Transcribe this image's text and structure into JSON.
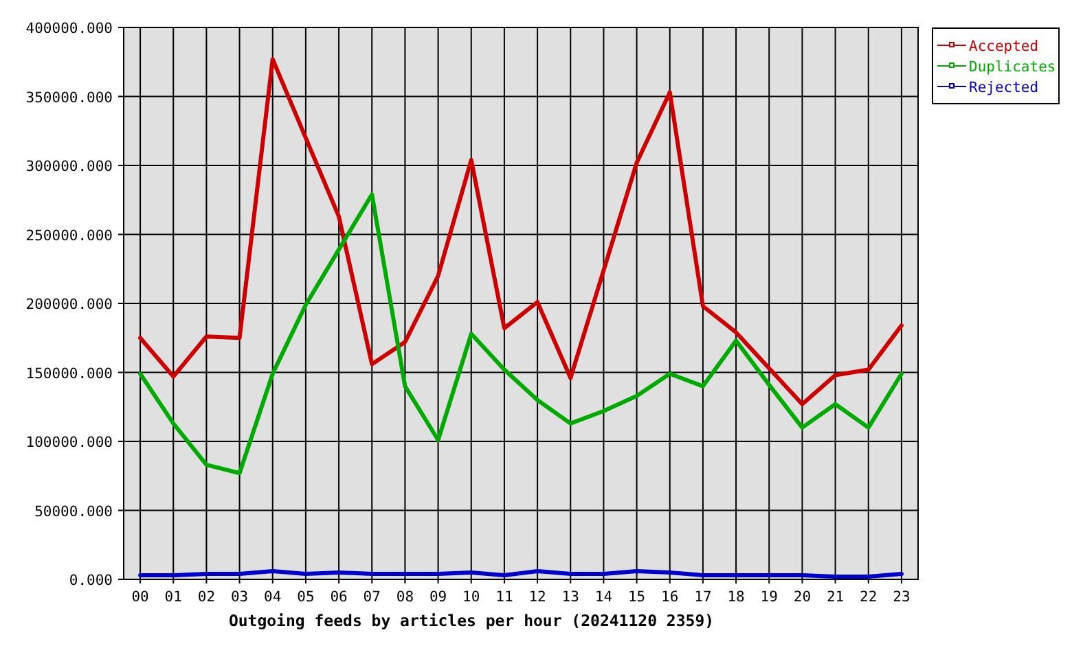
{
  "chart_data": {
    "type": "line",
    "xlabel": "Outgoing feeds by articles per hour (20241120 2359)",
    "categories": [
      "00",
      "01",
      "02",
      "03",
      "04",
      "05",
      "06",
      "07",
      "08",
      "09",
      "10",
      "11",
      "12",
      "13",
      "14",
      "15",
      "16",
      "17",
      "18",
      "19",
      "20",
      "21",
      "22",
      "23"
    ],
    "series": [
      {
        "name": "Accepted",
        "color": "#cc0000",
        "values": [
          175000,
          147000,
          176000,
          175000,
          377000,
          320000,
          263000,
          156000,
          172000,
          220000,
          304000,
          182000,
          201000,
          146000,
          224000,
          302000,
          353000,
          198000,
          179000,
          153000,
          127000,
          148000,
          152000,
          184000
        ]
      },
      {
        "name": "Duplicates",
        "color": "#00aa00",
        "values": [
          149000,
          113000,
          83000,
          77000,
          149000,
          199000,
          239000,
          279000,
          140000,
          101000,
          178000,
          152000,
          130000,
          113000,
          122000,
          133000,
          149000,
          140000,
          173000,
          141000,
          110000,
          127000,
          110000,
          149000
        ]
      },
      {
        "name": "Rejected",
        "color": "#0000cc",
        "values": [
          3000,
          3000,
          4000,
          4000,
          6000,
          4000,
          5000,
          4000,
          4000,
          4000,
          5000,
          3000,
          6000,
          4000,
          4000,
          6000,
          5000,
          3000,
          3000,
          3000,
          3000,
          2000,
          2000,
          4000
        ]
      }
    ],
    "ylim": [
      0,
      400000
    ],
    "yticks": [
      {
        "value": 0,
        "label": "0.000"
      },
      {
        "value": 50000,
        "label": "50000.000"
      },
      {
        "value": 100000,
        "label": "100000.000"
      },
      {
        "value": 150000,
        "label": "150000.000"
      },
      {
        "value": 200000,
        "label": "200000.000"
      },
      {
        "value": 250000,
        "label": "250000.000"
      },
      {
        "value": 300000,
        "label": "300000.000"
      },
      {
        "value": 350000,
        "label": "350000.000"
      },
      {
        "value": 400000,
        "label": "400000.000"
      }
    ],
    "grid": true,
    "legend": "top right"
  }
}
